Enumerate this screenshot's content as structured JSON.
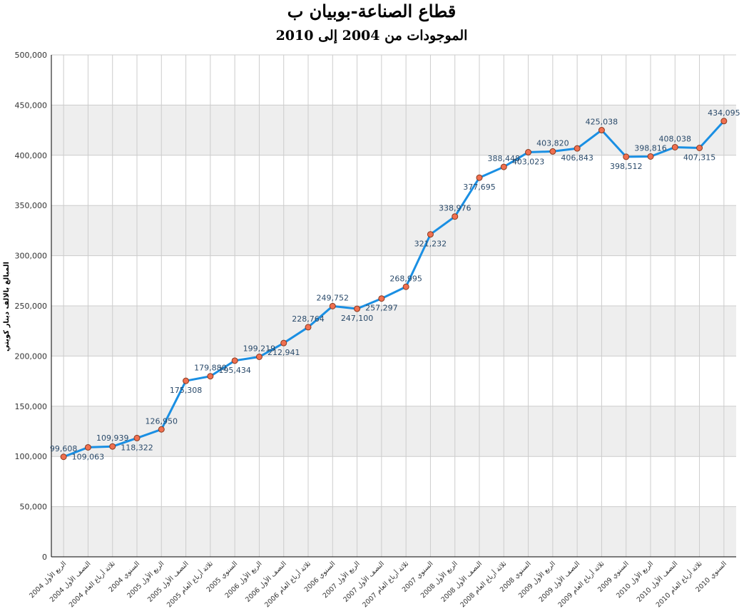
{
  "chart_data": {
    "type": "line",
    "title": "قطاع الصناعة-بوبيان ب",
    "subtitle": "الموجودات من 2004 إلى 2010",
    "y_label": "المبالغ بالالف دينار كويتي",
    "categories": [
      "الربع الأول 2004",
      "النصف الأول 2004",
      "ثلاثة أرباع العام 2004",
      "السنوي 2004",
      "الربع الأول 2005",
      "النصف الأول 2005",
      "ثلاثة أرباع العام 2005",
      "السنوي 2005",
      "الربع الأول 2006",
      "النصف الأول 2006",
      "ثلاثة أرباع العام 2006",
      "السنوي 2006",
      "الربع الأول 2007",
      "النصف الأول 2007",
      "ثلاثة أرباع العام 2007",
      "السنوي 2007",
      "الربع الأول 2008",
      "النصف الأول 2008",
      "ثلاثة أرباع العام 2008",
      "السنوي 2008",
      "الربع الأول 2009",
      "النصف الأول 2009",
      "ثلاثة أرباع العام 2009",
      "السنوي 2009",
      "الربع الأول 2010",
      "النصف الأول 2010",
      "ثلاثة أرباع العام 2010",
      "السنوي 2010"
    ],
    "series": [
      {
        "color": "#1a8fe3",
        "marker_color": "#f07050",
        "values": [
          99608,
          109063,
          109939,
          118322,
          126950,
          175308,
          179880,
          195434,
          199219,
          212941,
          228764,
          249752,
          247100,
          257297,
          268995,
          321232,
          338976,
          377695,
          388448,
          403023,
          403820,
          406843,
          425038,
          398512,
          398816,
          408038,
          407315,
          434095
        ],
        "value_labels": [
          "99,608",
          "109,063",
          "109,939",
          "118,322",
          "126,950",
          "175,308",
          "179,880",
          "195,434",
          "199,219",
          "212,941",
          "228,764",
          "249,752",
          "247,100",
          "257,297",
          "268,995",
          "321,232",
          "338,976",
          "377,695",
          "388,448",
          "403,023",
          "403,820",
          "406,843",
          "425,038",
          "398,512",
          "398,816",
          "408,038",
          "407,315",
          "434,095"
        ]
      }
    ],
    "ylim": [
      0,
      500000
    ],
    "yticks": [
      0,
      {
        "value": 50000,
        "label": "50,000"
      },
      {
        "value": 100000,
        "label": "100,000"
      },
      {
        "value": 150000,
        "label": "150,000"
      },
      {
        "value": 200000,
        "label": "200,000"
      },
      {
        "value": 250000,
        "label": "250,000"
      },
      {
        "value": 300000,
        "label": "300,000"
      },
      {
        "value": 350000,
        "label": "350,000"
      },
      {
        "value": 400000,
        "label": "400,000"
      },
      {
        "value": 450000,
        "label": "450,000"
      },
      {
        "value": 500000,
        "label": "500,000"
      }
    ],
    "grid": true,
    "band_color": "#eeeeee"
  }
}
